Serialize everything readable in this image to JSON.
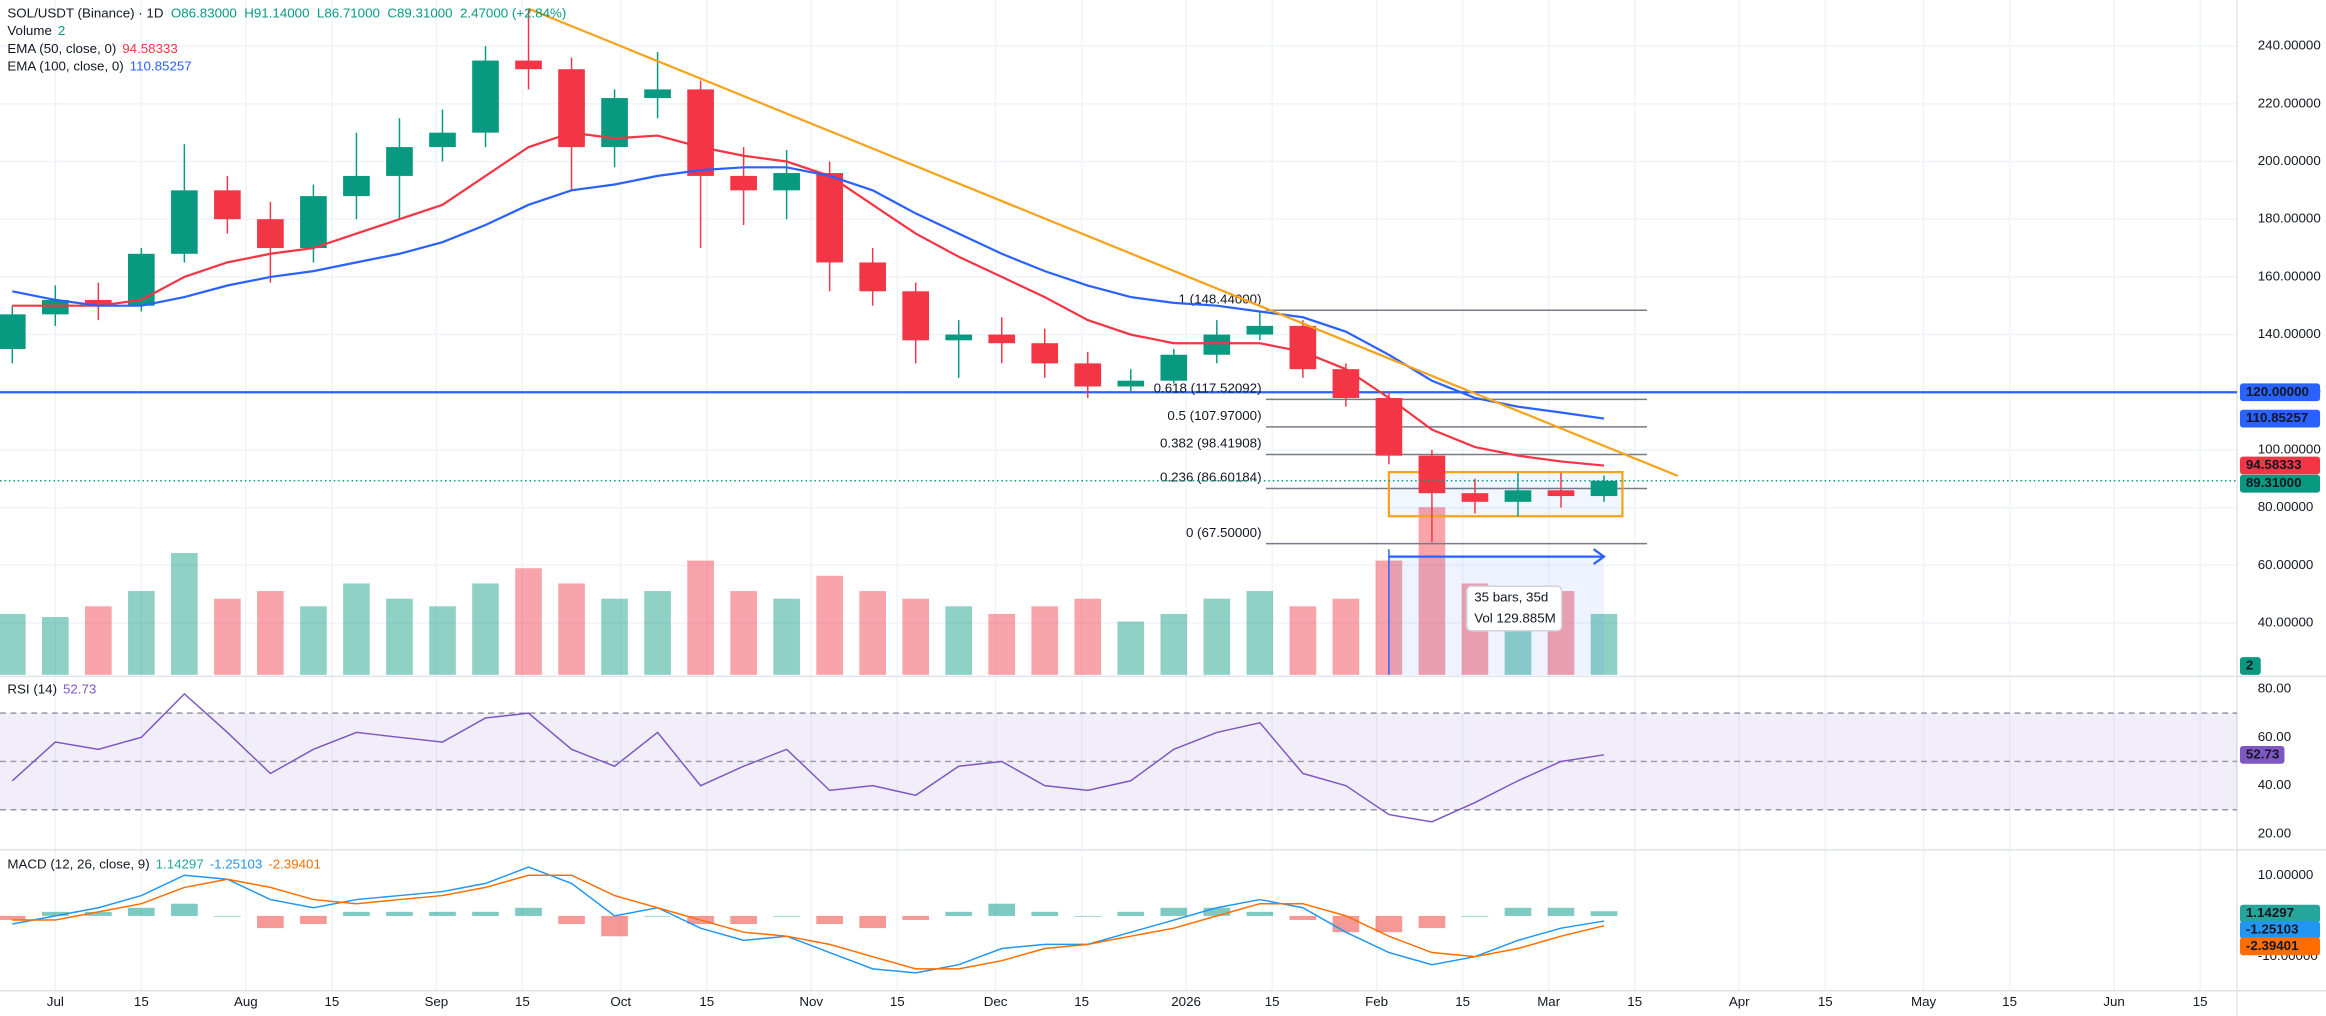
{
  "header": {
    "symbol": "SOL/USDT (Binance) · 1D",
    "ohlc": [
      "O86.83000",
      "H91.14000",
      "L86.71000",
      "C89.31000",
      "2.47000 (+2.84%)"
    ],
    "volume_name": "Volume",
    "volume_value": "2"
  },
  "chart_data": {
    "type": "candlestick",
    "x": [
      -7,
      0,
      7,
      14,
      21,
      28,
      35,
      42,
      49,
      56,
      63,
      70,
      77,
      84,
      91,
      98,
      105,
      112,
      119,
      126,
      133,
      140,
      147,
      154,
      161,
      168,
      175,
      182,
      189,
      196,
      203,
      210,
      217,
      224,
      231,
      238,
      245,
      252
    ],
    "open": [
      135,
      147,
      152,
      150,
      168,
      190,
      180,
      170,
      188,
      195,
      205,
      210,
      235,
      232,
      205,
      222,
      225,
      195,
      190,
      196,
      165,
      155,
      138,
      140,
      137,
      130,
      122,
      124,
      133,
      140,
      143,
      128,
      118,
      98,
      85,
      82,
      86,
      84
    ],
    "high": [
      150,
      157,
      158,
      170,
      206,
      195,
      186,
      192,
      210,
      215,
      218,
      240,
      253,
      236,
      225,
      238,
      228,
      205,
      204,
      200,
      170,
      158,
      145,
      146,
      142,
      134,
      128,
      135,
      145,
      148,
      145,
      130,
      120,
      100,
      90,
      92,
      92,
      91.14
    ],
    "low": [
      130,
      143,
      145,
      148,
      165,
      175,
      158,
      165,
      180,
      180,
      200,
      205,
      225,
      190,
      198,
      215,
      170,
      178,
      180,
      155,
      150,
      130,
      125,
      130,
      125,
      118,
      120,
      123,
      130,
      138,
      125,
      115,
      95,
      68,
      78,
      77,
      80,
      82
    ],
    "close": [
      147,
      152,
      150,
      168,
      190,
      180,
      170,
      188,
      195,
      205,
      210,
      235,
      232,
      205,
      222,
      225,
      195,
      190,
      196,
      165,
      155,
      138,
      140,
      137,
      130,
      122,
      124,
      133,
      140,
      143,
      128,
      118,
      98,
      85,
      82,
      86,
      84,
      89.31
    ],
    "close_label": "89.31000",
    "volume": [
      40,
      38,
      45,
      55,
      80,
      50,
      55,
      45,
      60,
      50,
      45,
      60,
      70,
      60,
      50,
      55,
      75,
      55,
      50,
      65,
      55,
      50,
      45,
      40,
      45,
      50,
      35,
      40,
      50,
      55,
      45,
      50,
      75,
      110,
      60,
      50,
      55,
      40
    ],
    "up_color": "#089981",
    "down_color": "#f23645",
    "overlays": [
      {
        "name": "EMA (50, close, 0)",
        "value_label": "94.58333",
        "color": "#f23645",
        "values": [
          150,
          150,
          150,
          152,
          160,
          165,
          168,
          170,
          175,
          180,
          185,
          195,
          205,
          210,
          208,
          209,
          205,
          202,
          200,
          195,
          185,
          175,
          167,
          160,
          153,
          145,
          140,
          137,
          137,
          137,
          134,
          128,
          118,
          107,
          101,
          98,
          96,
          94.58333
        ]
      },
      {
        "name": "EMA (100, close, 0)",
        "value_label": "110.85257",
        "color": "#2962ff",
        "values": [
          155,
          152,
          150,
          150,
          153,
          157,
          160,
          162,
          165,
          168,
          172,
          178,
          185,
          190,
          192,
          195,
          197,
          198,
          198,
          195,
          190,
          182,
          175,
          168,
          162,
          157,
          153,
          151,
          150,
          148,
          146,
          141,
          133,
          124,
          118,
          115,
          113,
          110.85257
        ]
      }
    ],
    "xlim": [
      -9,
      355
    ],
    "xticks": [
      {
        "value": 0,
        "label": "Jul"
      },
      {
        "value": 14,
        "label": "15"
      },
      {
        "value": 31,
        "label": "Aug"
      },
      {
        "value": 45,
        "label": "15"
      },
      {
        "value": 62,
        "label": "Sep"
      },
      {
        "value": 76,
        "label": "15"
      },
      {
        "value": 92,
        "label": "Oct"
      },
      {
        "value": 106,
        "label": "15"
      },
      {
        "value": 123,
        "label": "Nov"
      },
      {
        "value": 137,
        "label": "15"
      },
      {
        "value": 153,
        "label": "Dec"
      },
      {
        "value": 167,
        "label": "15"
      },
      {
        "value": 184,
        "label": "2026"
      },
      {
        "value": 198,
        "label": "15"
      },
      {
        "value": 215,
        "label": "Feb"
      },
      {
        "value": 229,
        "label": "15"
      },
      {
        "value": 243,
        "label": "Mar"
      },
      {
        "value": 257,
        "label": "15"
      },
      {
        "value": 274,
        "label": "Apr"
      },
      {
        "value": 288,
        "label": "15"
      },
      {
        "value": 304,
        "label": "May"
      },
      {
        "value": 318,
        "label": "15"
      },
      {
        "value": 335,
        "label": "Jun"
      },
      {
        "value": 349,
        "label": "15"
      }
    ],
    "ylim": [
      22,
      256
    ],
    "yticks": [
      {
        "value": 40,
        "label": "40.00000"
      },
      {
        "value": 60,
        "label": "60.00000"
      },
      {
        "value": 80,
        "label": "80.00000"
      },
      {
        "value": 100,
        "label": "100.00000"
      },
      {
        "value": 120,
        "label": "120.00000"
      },
      {
        "value": 140,
        "label": "140.00000"
      },
      {
        "value": 160,
        "label": "160.00000"
      },
      {
        "value": 180,
        "label": "180.00000"
      },
      {
        "value": 200,
        "label": "200.00000"
      },
      {
        "value": 220,
        "label": "220.00000"
      },
      {
        "value": 240,
        "label": "240.00000"
      }
    ],
    "hline": {
      "value": 120,
      "label": "120.00000",
      "color": "#2962ff"
    },
    "trendline": {
      "color": "#f7a21b",
      "x": [
        77,
        264
      ],
      "y": [
        253,
        91
      ]
    },
    "fib": {
      "x": [
        197,
        259
      ],
      "color": "#787b86",
      "levels": [
        {
          "value": 148.44,
          "label": "1 (148.44000)"
        },
        {
          "value": 117.52092,
          "label": "0.618 (117.52092)"
        },
        {
          "value": 107.97,
          "label": "0.5 (107.97000)"
        },
        {
          "value": 98.41908,
          "label": "0.382 (98.41908)"
        },
        {
          "value": 86.60184,
          "label": "0.236 (86.60184)"
        },
        {
          "value": 67.5,
          "label": "0 (67.50000)"
        }
      ]
    },
    "range_box": {
      "x": [
        217,
        255
      ],
      "y": [
        77,
        92.3
      ],
      "color": "#f7a21b"
    },
    "date_range": {
      "x": [
        217,
        252
      ],
      "y": 63,
      "color": "#2962ff",
      "labels": [
        "35 bars, 35d",
        "Vol 129.885M"
      ]
    },
    "rsi": {
      "title": "RSI (14)",
      "value_label": "52.73",
      "color": "#7e57c2",
      "values": [
        42,
        58,
        55,
        60,
        78,
        62,
        45,
        55,
        62,
        60,
        58,
        68,
        70,
        55,
        48,
        62,
        40,
        48,
        55,
        38,
        40,
        36,
        48,
        50,
        40,
        38,
        42,
        55,
        62,
        66,
        45,
        40,
        28,
        25,
        33,
        42,
        50,
        52.73
      ],
      "ylim": [
        14,
        84
      ],
      "band": [
        30,
        70
      ],
      "midline": 50,
      "yticks": [
        {
          "value": 20,
          "label": "20.00"
        },
        {
          "value": 40,
          "label": "40.00"
        },
        {
          "value": 60,
          "label": "60.00"
        },
        {
          "value": 80,
          "label": "80.00"
        }
      ]
    },
    "macd": {
      "title": "MACD (12, 26, close, 9)",
      "histogram": {
        "value_label": "1.14297",
        "color": "#26a69a",
        "neg_color": "#ef5350",
        "values": [
          -1,
          1,
          1,
          2,
          3,
          0,
          -3,
          -2,
          1,
          1,
          1,
          1,
          2,
          -2,
          -5,
          0,
          -2,
          -2,
          0,
          -2,
          -3,
          -1,
          1,
          3,
          1,
          0,
          1,
          2,
          2,
          1,
          -1,
          -4,
          -4,
          -3,
          0,
          2,
          2,
          1.14297
        ]
      },
      "lines": [
        {
          "value_label": "-1.25103",
          "color": "#2196f3",
          "values": [
            -2,
            0,
            2,
            5,
            10,
            9,
            4,
            2,
            4,
            5,
            6,
            8,
            12,
            8,
            0,
            2,
            -3,
            -6,
            -5,
            -9,
            -13,
            -14,
            -12,
            -8,
            -7,
            -7,
            -4,
            -1,
            2,
            4,
            2,
            -4,
            -9,
            -12,
            -10,
            -6,
            -3,
            -1.25103
          ]
        },
        {
          "value_label": "-2.39401",
          "color": "#ff6d00",
          "values": [
            -1,
            -1,
            1,
            3,
            7,
            9,
            7,
            4,
            3,
            4,
            5,
            7,
            10,
            10,
            5,
            2,
            -1,
            -4,
            -5,
            -7,
            -10,
            -13,
            -13,
            -11,
            -8,
            -7,
            -5,
            -3,
            0,
            3,
            3,
            0,
            -5,
            -9,
            -10,
            -8,
            -5,
            -2.39401
          ]
        }
      ],
      "ylim": [
        -18.4,
        15.5
      ],
      "yticks": [
        {
          "value": 10,
          "label": "10.00000"
        },
        {
          "value": -10,
          "label": "-10.00000"
        }
      ]
    }
  }
}
